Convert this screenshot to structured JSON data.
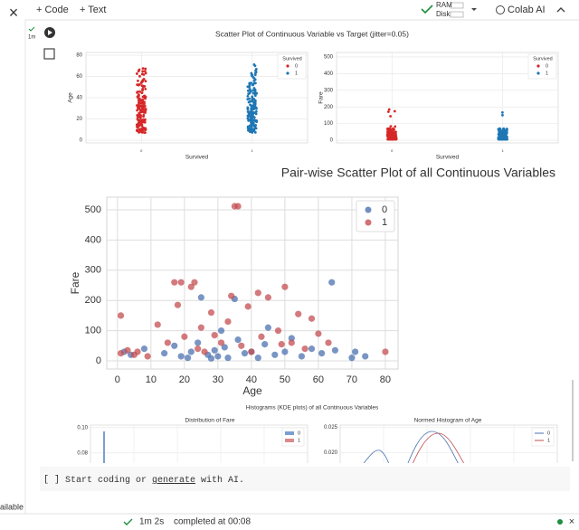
{
  "toolbar": {
    "code": "+ Code",
    "text": "+ Text",
    "ram": "RAM",
    "disk": "Disk",
    "ai": "Colab AI"
  },
  "sidebar": {
    "run_time": "1m",
    "status": "ailable"
  },
  "strip": {
    "title": "Scatter Plot of Continuous Variable vs Target (jitter=0.05)",
    "subplots": [
      {
        "type": "strip",
        "ylabel": "Age",
        "xlabel": "Survived",
        "xlim": [
          -0.5,
          1.5
        ],
        "xticks": [
          0,
          1
        ],
        "ylim": [
          -2.5,
          82.6
        ],
        "yticks": [
          0,
          20,
          40,
          60,
          80
        ],
        "legend_title": "Survived",
        "legend": [
          {
            "name": "0",
            "color": "#d62728"
          },
          {
            "name": "1",
            "color": "#1f77b4"
          }
        ]
      },
      {
        "type": "strip",
        "ylabel": "Fare",
        "xlabel": "Survived",
        "xlim": [
          -0.5,
          1.5
        ],
        "xticks": [
          0,
          1
        ],
        "ylim": [
          -16,
          527
        ],
        "yticks": [
          0,
          100,
          200,
          300,
          400,
          500
        ],
        "legend_title": "Survived",
        "legend": [
          {
            "name": "0",
            "color": "#d62728"
          },
          {
            "name": "1",
            "color": "#1f77b4"
          }
        ]
      }
    ]
  },
  "pairwise": {
    "type": "scatter",
    "title": "Pair-wise Scatter Plot of all Continuous Variables",
    "xlabel": "Age",
    "ylabel": "Fare",
    "xlim": [
      -3.2,
      83.8
    ],
    "ylim": [
      -27,
      542
    ],
    "xticks": [
      0,
      10,
      20,
      30,
      40,
      50,
      60,
      70,
      80
    ],
    "yticks": [
      0,
      100,
      200,
      300,
      400,
      500
    ],
    "grid": true,
    "series": [
      {
        "name": "0",
        "color": "#4c72b0",
        "x": [
          2,
          4,
          8,
          14,
          17,
          19,
          21,
          22,
          24,
          25,
          27,
          28,
          29,
          30,
          31,
          32,
          33,
          35,
          36,
          38,
          40,
          42,
          44,
          45,
          47,
          50,
          52,
          55,
          58,
          61,
          64,
          65,
          70,
          71,
          74
        ],
        "values": [
          30,
          20,
          40,
          25,
          50,
          15,
          10,
          30,
          60,
          210,
          20,
          8,
          35,
          15,
          100,
          45,
          10,
          205,
          70,
          25,
          30,
          10,
          55,
          110,
          20,
          30,
          75,
          15,
          40,
          25,
          260,
          35,
          10,
          30,
          15
        ]
      },
      {
        "name": "1",
        "color": "#c44e52",
        "x": [
          1,
          1,
          3,
          5,
          6,
          9,
          12,
          15,
          17,
          18,
          19,
          20,
          22,
          23,
          24,
          25,
          26,
          28,
          29,
          31,
          33,
          34,
          35,
          36,
          37,
          39,
          40,
          42,
          43,
          45,
          48,
          49,
          50,
          52,
          54,
          56,
          58,
          60,
          63,
          80
        ],
        "values": [
          150,
          25,
          35,
          20,
          30,
          15,
          120,
          60,
          260,
          185,
          260,
          80,
          245,
          260,
          40,
          110,
          30,
          160,
          85,
          60,
          130,
          215,
          512,
          512,
          50,
          180,
          30,
          225,
          80,
          210,
          100,
          55,
          245,
          60,
          155,
          40,
          140,
          90,
          60,
          30
        ]
      }
    ]
  },
  "kde": {
    "title": "Histograms (KDE plots) of all Continuous Variables",
    "subplots": [
      {
        "title": "Distribution of Fare",
        "ylim": [
          0.072,
          0.102
        ],
        "yticks": [
          {
            "value": 0.1,
            "label": "0.10"
          },
          0.08
        ],
        "legend": [
          {
            "name": "0",
            "color": "#7a9fd0"
          },
          {
            "name": "1",
            "color": "#d98a8c"
          }
        ]
      },
      {
        "title": "Normed Histogram of Age",
        "ylim": [
          0.0179,
          0.0254
        ],
        "yticks": [
          0.025,
          {
            "value": 0.02,
            "label": "0.020"
          }
        ],
        "legend": [
          {
            "name": "0",
            "color": "#4c72b0"
          },
          {
            "name": "1",
            "color": "#c44e52"
          }
        ]
      }
    ]
  },
  "code_cell": {
    "brackets": "[ ]",
    "pre": "Start coding or ",
    "link": "generate",
    "post": " with AI."
  },
  "status": {
    "duration": "1m 2s",
    "completed": "completed at 00:08"
  }
}
